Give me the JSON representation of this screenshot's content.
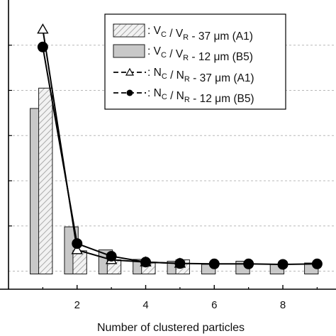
{
  "chart_data": {
    "type": "bar",
    "xlabel": "Number of clustered particles",
    "ylabel": "",
    "xlim": [
      0.0,
      9.55
    ],
    "ylim": [
      -0.04,
      0.6
    ],
    "x_ticks": [
      "2",
      "4",
      "6",
      "8"
    ],
    "grid": "horizontal dashed",
    "legend_position": "top-right",
    "bar_series": [
      {
        "id": "A1",
        "style": "hatched",
        "legend": {
          "prefix": ": V",
          "sub1": "C",
          "mid": " / V",
          "sub2": "R",
          "suffix": " - 37 μm (A1)"
        },
        "x": [
          1,
          2,
          3,
          4,
          5
        ],
        "values": [
          0.405,
          0.045,
          0.025,
          0.018,
          0.025
        ]
      },
      {
        "id": "B5",
        "style": "solid",
        "legend": {
          "prefix": ": V",
          "sub1": "C",
          "mid": " / V",
          "sub2": "R",
          "suffix": " - 12 μm (B5)"
        },
        "x": [
          1,
          2,
          3,
          4,
          5,
          6,
          7,
          8,
          9
        ],
        "values": [
          0.36,
          0.098,
          0.047,
          0.026,
          0.022,
          0.015,
          0.022,
          0.015,
          0.018
        ]
      }
    ],
    "line_series": [
      {
        "id": "A1",
        "marker": "triangle-open",
        "legend": {
          "prefix": ": N",
          "sub1": "C",
          "mid": " / N",
          "sub2": "R",
          "suffix": " - 37 μm (A1)"
        },
        "x": [
          1,
          2,
          3,
          4,
          5
        ],
        "values": [
          0.535,
          0.047,
          0.025,
          0.02,
          0.017
        ]
      },
      {
        "id": "B5",
        "marker": "circle-filled",
        "legend": {
          "prefix": ": N",
          "sub1": "C",
          "mid": " / N",
          "sub2": "R",
          "suffix": " - 12 μm (B5)"
        },
        "x": [
          1,
          2,
          3,
          4,
          5,
          6,
          7,
          8,
          9
        ],
        "values": [
          0.496,
          0.061,
          0.033,
          0.02,
          0.017,
          0.016,
          0.016,
          0.015,
          0.016
        ]
      }
    ]
  }
}
